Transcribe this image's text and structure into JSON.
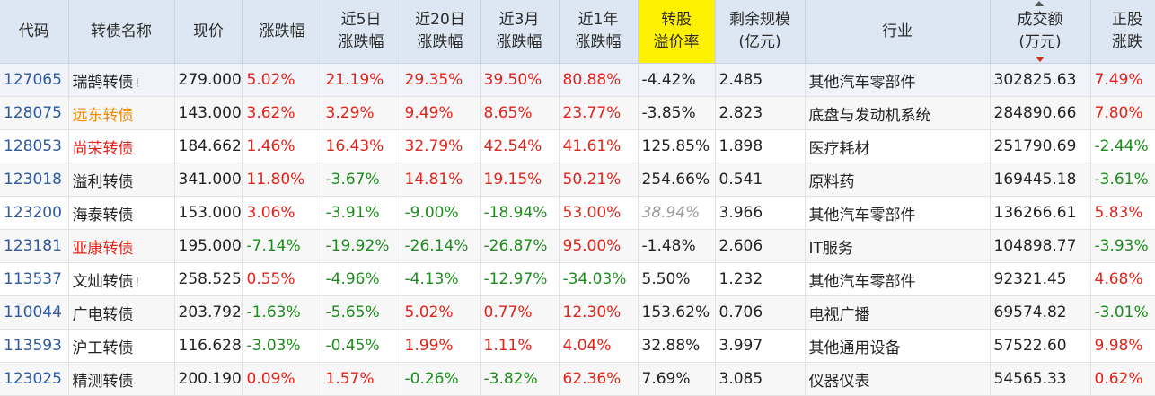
{
  "headers": [
    {
      "l1": "代码",
      "l2": ""
    },
    {
      "l1": "转债名称",
      "l2": ""
    },
    {
      "l1": "现价",
      "l2": ""
    },
    {
      "l1": "涨跌幅",
      "l2": ""
    },
    {
      "l1": "近5日",
      "l2": "涨跌幅"
    },
    {
      "l1": "近20日",
      "l2": "涨跌幅"
    },
    {
      "l1": "近3月",
      "l2": "涨跌幅"
    },
    {
      "l1": "近1年",
      "l2": "涨跌幅"
    },
    {
      "l1": "转股",
      "l2": "溢价率"
    },
    {
      "l1": "剩余规模",
      "l2": "(亿元)"
    },
    {
      "l1": "行业",
      "l2": ""
    },
    {
      "l1": "成交额",
      "l2": "(万元)"
    },
    {
      "l1": "正股",
      "l2": "涨跌"
    }
  ],
  "colors": {
    "up": "#e2231a",
    "down": "#1e8b1e",
    "highlight": "#fff200",
    "header_bg": "#dde7f3"
  },
  "rows": [
    {
      "code": "127065",
      "name": "瑞鹄转债",
      "name_style": "normal",
      "warn": "!",
      "price": "279.000",
      "chg": "5.02%",
      "chg5": "21.19%",
      "chg20": "29.35%",
      "chg3m": "39.50%",
      "chg1y": "80.88%",
      "premium": "-4.42%",
      "premium_style": "plain",
      "remain": "2.485",
      "industry": "其他汽车零部件",
      "turnover": "302825.63",
      "stock_chg": "7.49%"
    },
    {
      "code": "128075",
      "name": "远东转债",
      "name_style": "orange",
      "warn": "",
      "price": "143.000",
      "chg": "3.62%",
      "chg5": "3.29%",
      "chg20": "9.49%",
      "chg3m": "8.65%",
      "chg1y": "23.77%",
      "premium": "-3.85%",
      "premium_style": "plain",
      "remain": "2.823",
      "industry": "底盘与发动机系统",
      "turnover": "284890.66",
      "stock_chg": "7.80%"
    },
    {
      "code": "128053",
      "name": "尚荣转债",
      "name_style": "red",
      "warn": "",
      "price": "184.662",
      "chg": "1.46%",
      "chg5": "16.43%",
      "chg20": "32.79%",
      "chg3m": "42.54%",
      "chg1y": "41.61%",
      "premium": "125.85%",
      "premium_style": "plain",
      "remain": "1.898",
      "industry": "医疗耗材",
      "turnover": "251790.69",
      "stock_chg": "-2.44%"
    },
    {
      "code": "123018",
      "name": "溢利转债",
      "name_style": "normal",
      "warn": "",
      "price": "341.000",
      "chg": "11.80%",
      "chg5": "-3.67%",
      "chg20": "14.81%",
      "chg3m": "19.15%",
      "chg1y": "50.21%",
      "premium": "254.66%",
      "premium_style": "plain",
      "remain": "0.541",
      "industry": "原料药",
      "turnover": "169445.18",
      "stock_chg": "-3.61%"
    },
    {
      "code": "123200",
      "name": "海泰转债",
      "name_style": "normal",
      "warn": "",
      "price": "153.000",
      "chg": "3.06%",
      "chg5": "-3.91%",
      "chg20": "-9.00%",
      "chg3m": "-18.94%",
      "chg1y": "53.00%",
      "premium": "38.94%",
      "premium_style": "italic",
      "remain": "3.966",
      "industry": "其他汽车零部件",
      "turnover": "136266.61",
      "stock_chg": "5.83%"
    },
    {
      "code": "123181",
      "name": "亚康转债",
      "name_style": "red",
      "warn": "",
      "price": "195.000",
      "chg": "-7.14%",
      "chg5": "-19.92%",
      "chg20": "-26.14%",
      "chg3m": "-26.87%",
      "chg1y": "95.00%",
      "premium": "-1.48%",
      "premium_style": "plain",
      "remain": "2.606",
      "industry": "IT服务",
      "turnover": "104898.77",
      "stock_chg": "-3.93%"
    },
    {
      "code": "113537",
      "name": "文灿转债",
      "name_style": "normal",
      "warn": "!",
      "price": "258.525",
      "chg": "0.55%",
      "chg5": "-4.96%",
      "chg20": "-4.13%",
      "chg3m": "-12.97%",
      "chg1y": "-34.03%",
      "premium": "5.50%",
      "premium_style": "plain",
      "remain": "1.232",
      "industry": "其他汽车零部件",
      "turnover": "92321.45",
      "stock_chg": "4.68%"
    },
    {
      "code": "110044",
      "name": "广电转债",
      "name_style": "normal",
      "warn": "",
      "price": "203.792",
      "chg": "-1.63%",
      "chg5": "-5.65%",
      "chg20": "5.02%",
      "chg3m": "0.77%",
      "chg1y": "12.30%",
      "premium": "153.62%",
      "premium_style": "plain",
      "remain": "0.706",
      "industry": "电视广播",
      "turnover": "69574.82",
      "stock_chg": "-3.01%"
    },
    {
      "code": "113593",
      "name": "沪工转债",
      "name_style": "normal",
      "warn": "",
      "price": "116.628",
      "chg": "-3.03%",
      "chg5": "-0.45%",
      "chg20": "1.99%",
      "chg3m": "1.11%",
      "chg1y": "4.04%",
      "premium": "32.88%",
      "premium_style": "plain",
      "remain": "3.997",
      "industry": "其他通用设备",
      "turnover": "57522.60",
      "stock_chg": "9.98%"
    },
    {
      "code": "123025",
      "name": "精测转债",
      "name_style": "normal",
      "warn": "",
      "price": "200.190",
      "chg": "0.09%",
      "chg5": "1.57%",
      "chg20": "-0.26%",
      "chg3m": "-3.82%",
      "chg1y": "62.36%",
      "premium": "7.69%",
      "premium_style": "plain",
      "remain": "3.085",
      "industry": "仪器仪表",
      "turnover": "54565.33",
      "stock_chg": "0.62%"
    }
  ]
}
